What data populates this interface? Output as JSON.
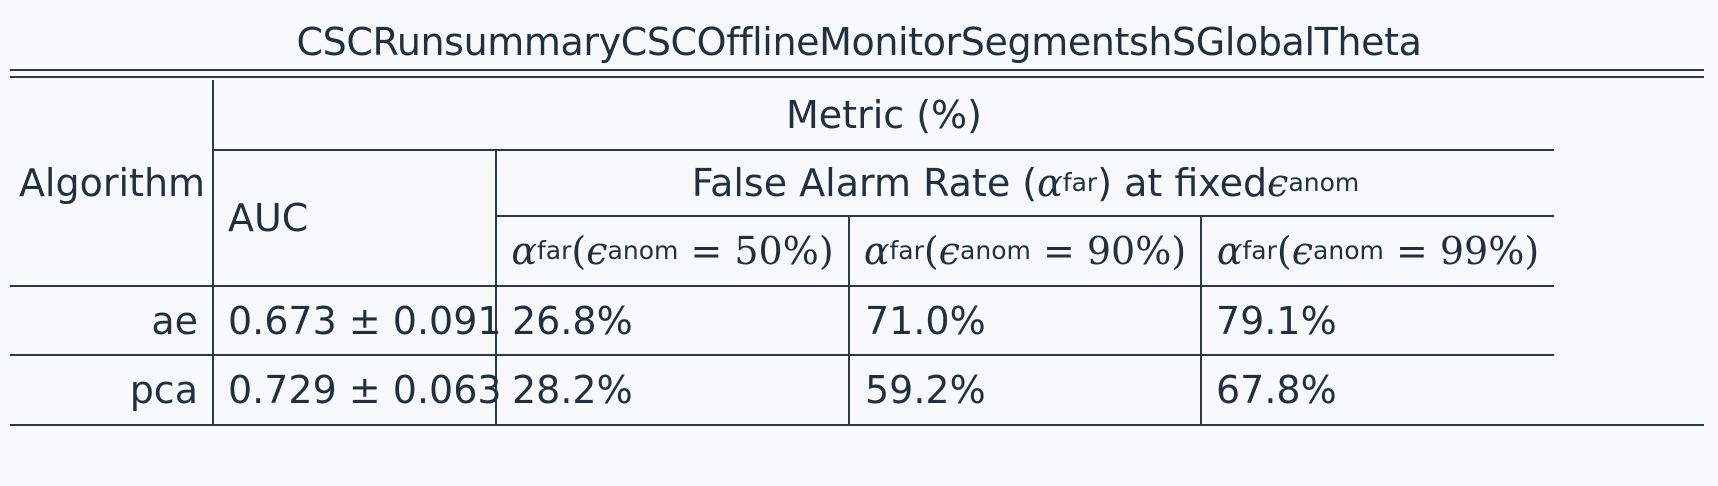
{
  "title": "CSCRunsummaryCSCOfflineMonitorSegmentshSGlobalTheta",
  "table": {
    "algorithm_header": "Algorithm",
    "metric_header": "Metric (%)",
    "auc_header": "AUC",
    "far_header": {
      "prefix": "False Alarm Rate (",
      "alpha": "α",
      "far_sub": "far",
      "middle": ") at fixed ",
      "eps": "ϵ",
      "anom_sub": "anom"
    },
    "subcolumns": [
      {
        "alpha": "α",
        "far_sub": "far",
        "open": "(",
        "eps": "ϵ",
        "anom_sub": "anom",
        "eq": " = ",
        "value": "50%",
        "close": ")"
      },
      {
        "alpha": "α",
        "far_sub": "far",
        "open": "(",
        "eps": "ϵ",
        "anom_sub": "anom",
        "eq": " = ",
        "value": "90%",
        "close": ")"
      },
      {
        "alpha": "α",
        "far_sub": "far",
        "open": "(",
        "eps": "ϵ",
        "anom_sub": "anom",
        "eq": " = ",
        "value": "99%",
        "close": ")"
      }
    ],
    "rows": [
      {
        "algorithm": "ae",
        "auc": "0.673 ± 0.091",
        "far50": "26.8%",
        "far90": "71.0%",
        "far99": "79.1%"
      },
      {
        "algorithm": "pca",
        "auc": "0.729 ± 0.063",
        "far50": "28.2%",
        "far90": "59.2%",
        "far99": "67.8%"
      }
    ]
  }
}
